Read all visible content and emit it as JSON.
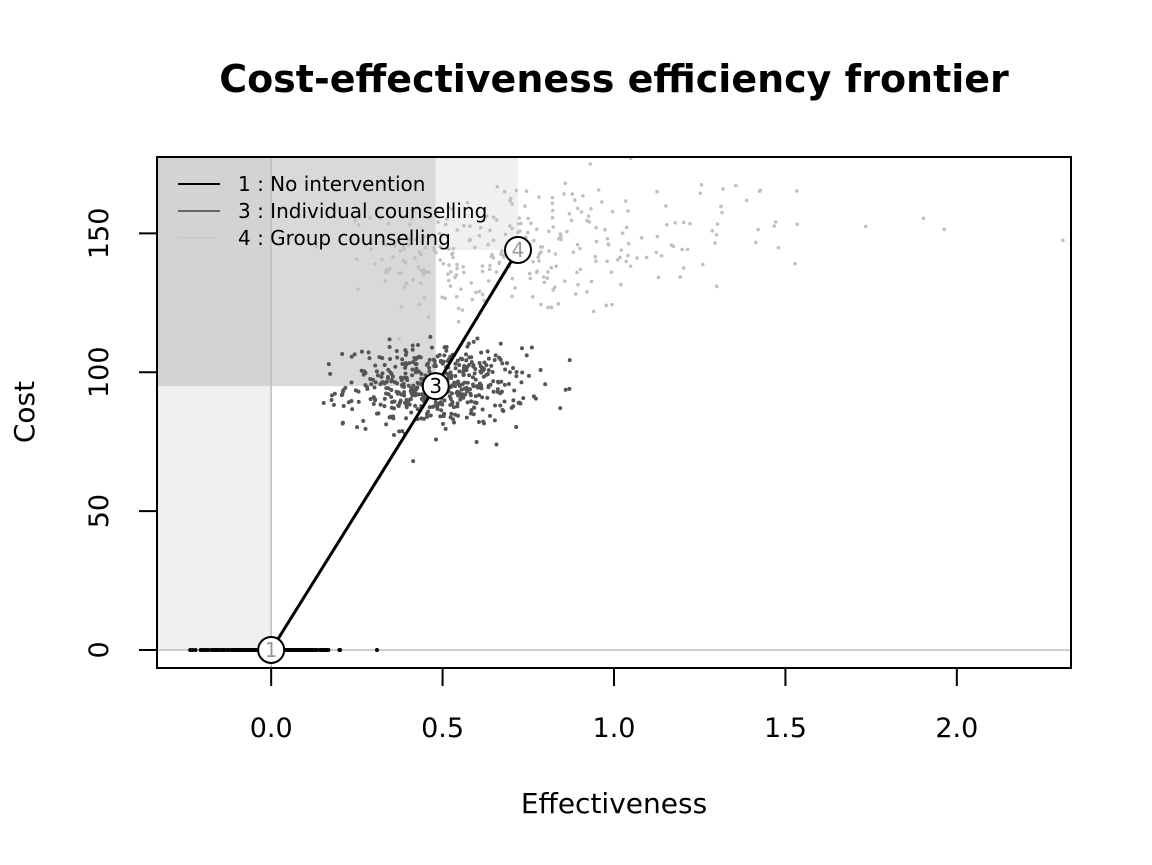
{
  "chart_data": {
    "type": "scatter",
    "title": "Cost-effectiveness efficiency frontier",
    "xlabel": "Effectiveness",
    "ylabel": "Cost",
    "xlim": [
      -0.333,
      2.333
    ],
    "ylim": [
      -6.5,
      177.5
    ],
    "x_ticks": [
      0.0,
      0.5,
      1.0,
      1.5,
      2.0
    ],
    "x_tick_labels": [
      "0.0",
      "0.5",
      "1.0",
      "1.5",
      "2.0"
    ],
    "y_ticks": [
      0,
      50,
      100,
      150
    ],
    "y_tick_labels": [
      "0",
      "50",
      "100",
      "150"
    ],
    "legend_position": "top-left",
    "legend": [
      {
        "label": "1 : No intervention",
        "color": "#000000"
      },
      {
        "label": "3 : Individual counselling",
        "color": "#666666"
      },
      {
        "label": "4 : Group counselling",
        "color": "#cccccc"
      }
    ],
    "series": [
      {
        "name": "1 : No intervention",
        "label": "1",
        "color": "#000000",
        "mean": {
          "x": 0.0,
          "y": 0
        },
        "cloud": {
          "x_mean": 0.0,
          "x_sd": 0.09,
          "y_mean": 0,
          "y_sd": 0,
          "n": 300
        },
        "x_range": [
          -0.25,
          0.34
        ]
      },
      {
        "name": "3 : Individual counselling",
        "label": "3",
        "color": "#555555",
        "mean": {
          "x": 0.48,
          "y": 95
        },
        "cloud": {
          "x_mean": 0.48,
          "x_sd": 0.13,
          "y_mean": 95,
          "y_sd": 7,
          "n": 500
        }
      },
      {
        "name": "4 : Group counselling",
        "label": "4",
        "color": "#c0c0c0",
        "mean": {
          "x": 0.72,
          "y": 144
        },
        "cloud": {
          "x_mean": 0.72,
          "x_sd": 0.33,
          "y_mean": 144,
          "y_sd": 14,
          "n": 300
        }
      }
    ],
    "frontier": [
      {
        "label": "1",
        "x": 0.0,
        "y": 0
      },
      {
        "label": "3",
        "x": 0.48,
        "y": 95
      },
      {
        "label": "4",
        "x": 0.72,
        "y": 144
      }
    ],
    "dominance_regions": [
      {
        "x0": -0.333,
        "x1": 0.0,
        "y0": 0,
        "y1": 177.5,
        "fill": "#f0f0f0"
      },
      {
        "x0": -0.333,
        "x1": 0.72,
        "y0": 144,
        "y1": 177.5,
        "fill": "#f0f0f0"
      },
      {
        "x0": -0.333,
        "x1": 0.48,
        "y0": 95,
        "y1": 177.5,
        "fill": "#f0f0f0"
      },
      {
        "x0": -0.333,
        "x1": 0.48,
        "y0": 95,
        "y1": 177.5,
        "fill": "#d9d9d9",
        "extra_x0": 0.0
      },
      {
        "x0": -0.333,
        "x1": 0.0,
        "y0": 95,
        "y1": 177.5,
        "fill": "#d3d3d3"
      }
    ],
    "reference_lines": {
      "x": 0,
      "y": 0,
      "color": "#bdbdbd"
    }
  }
}
